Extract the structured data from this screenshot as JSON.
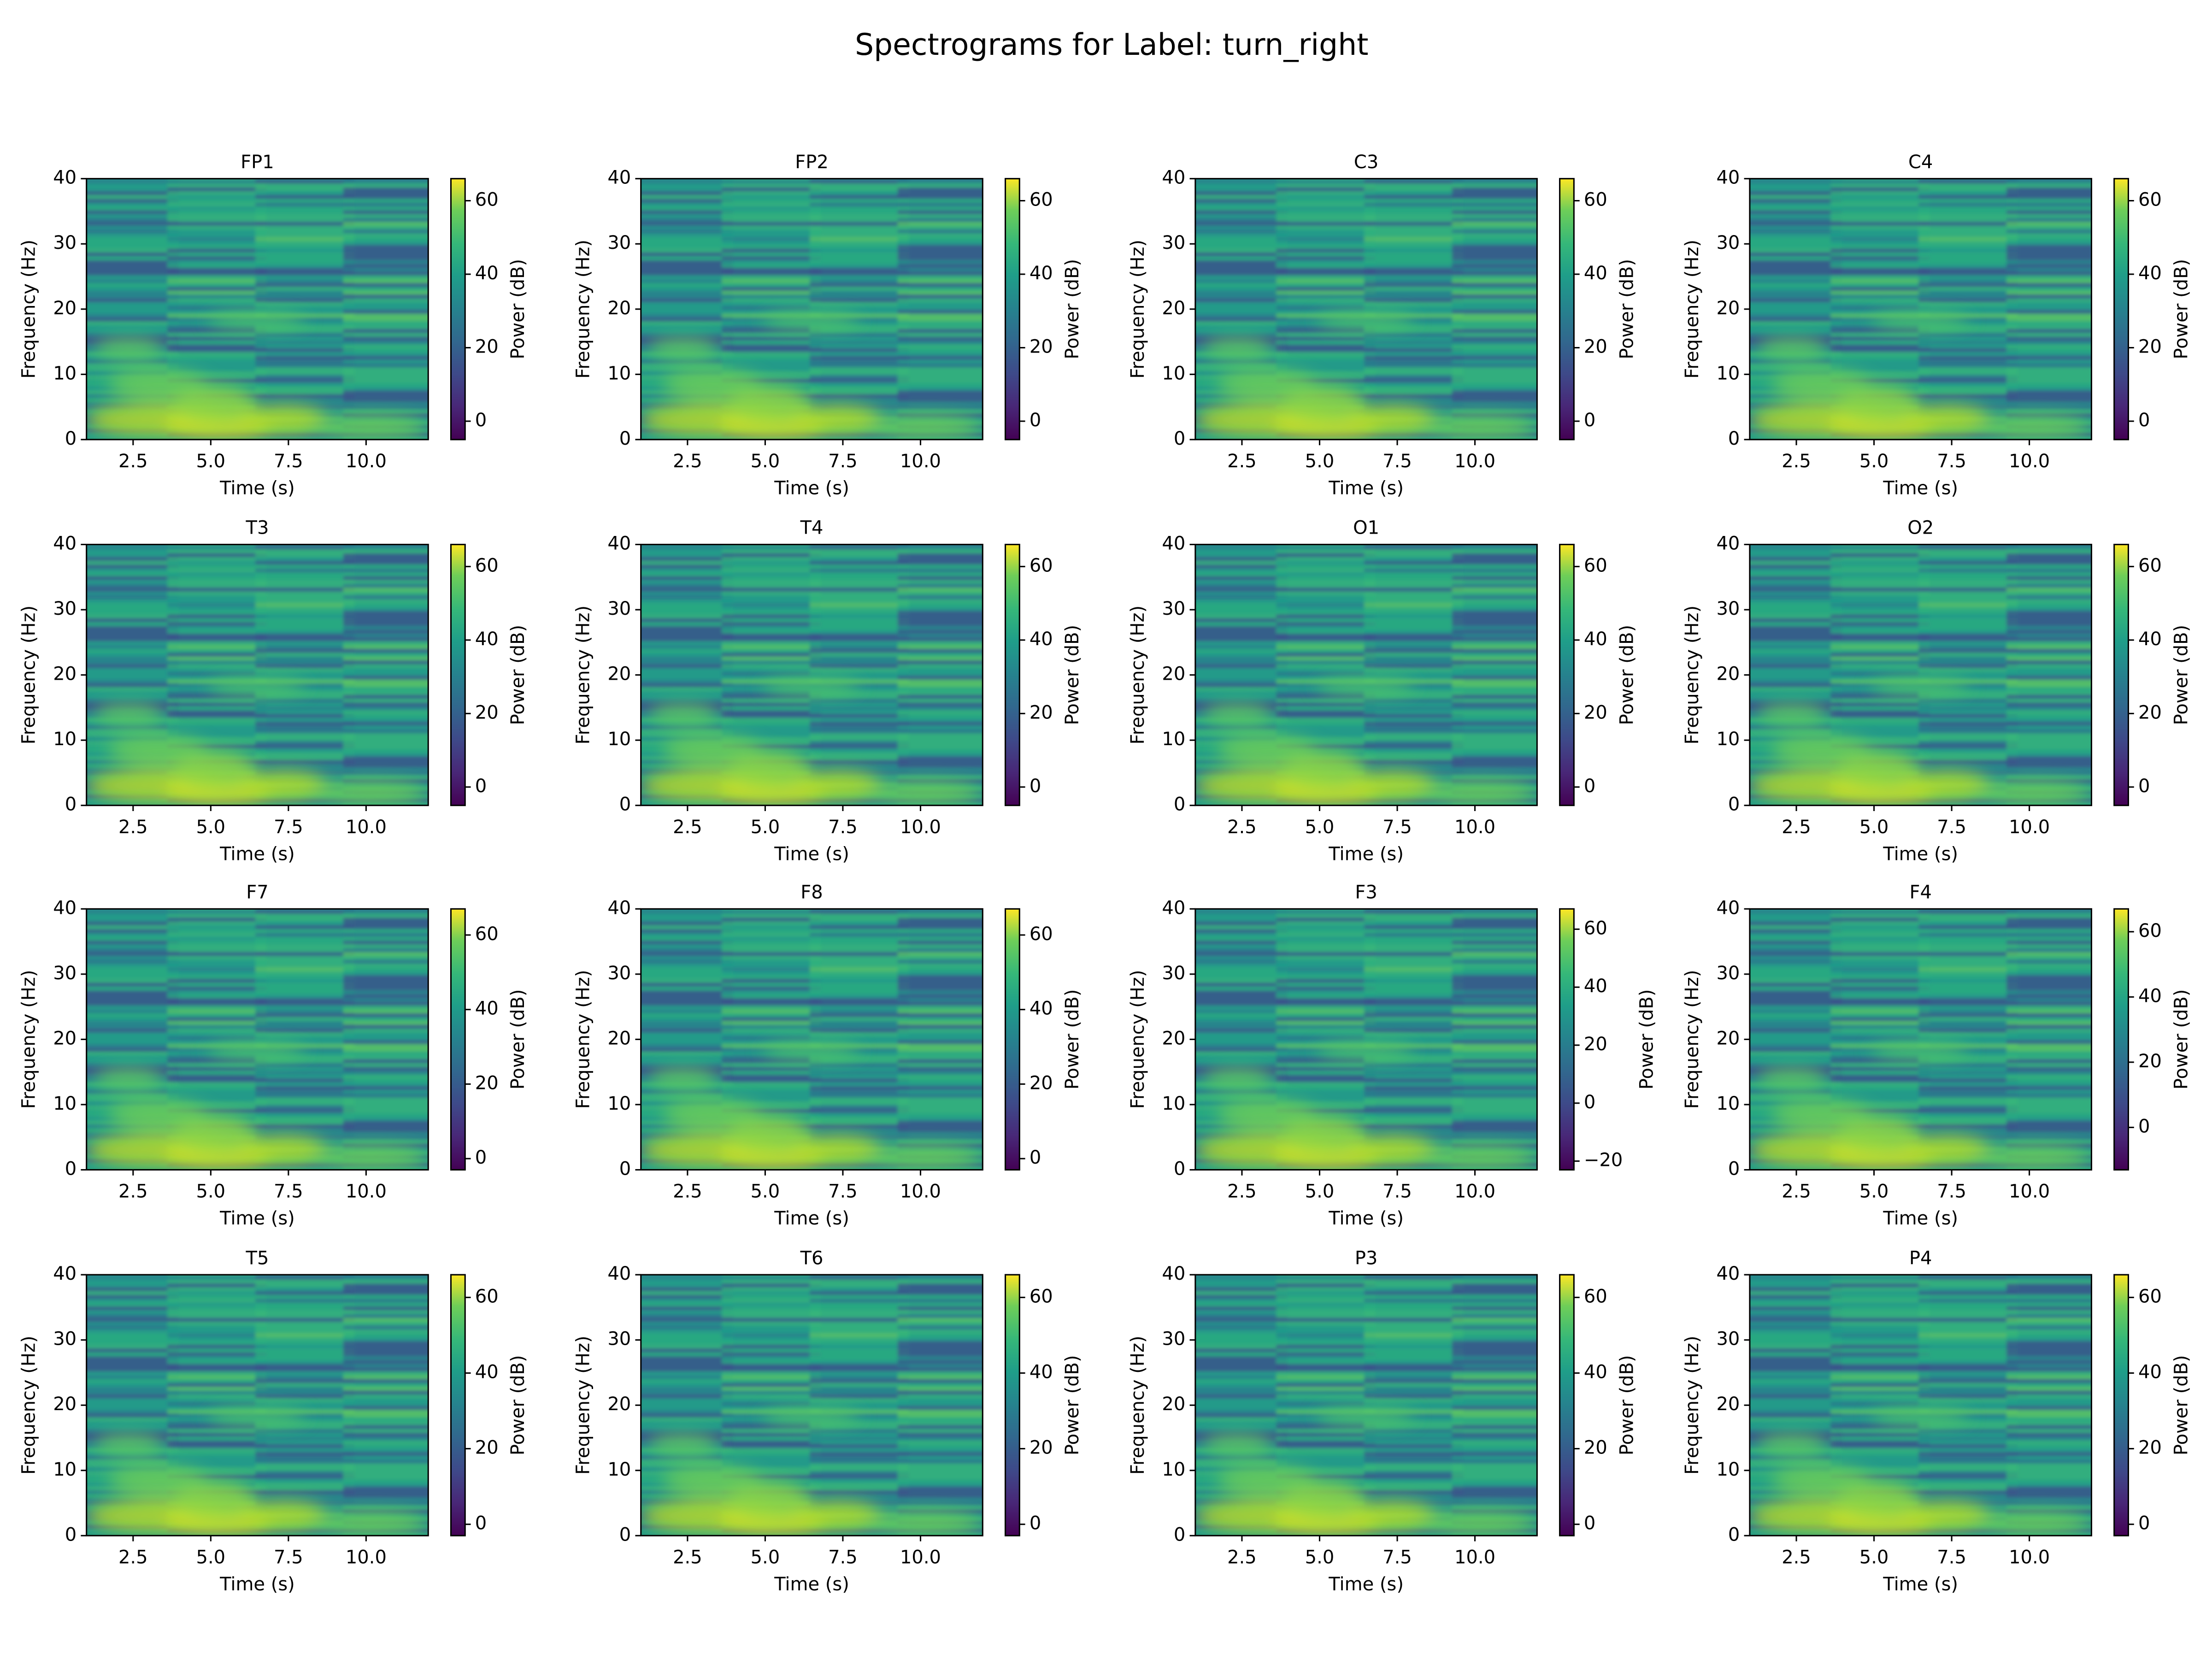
{
  "title": "Spectrograms for Label: turn_right",
  "chart_data": [
    {
      "type": "heatmap",
      "title": "FP1",
      "x_label": "Time (s)",
      "y_label": "Frequency (Hz)",
      "xlim": [
        1,
        12
      ],
      "xticks": [
        2.5,
        {
          "value": 5,
          "label": "5.0"
        },
        7.5,
        {
          "value": 10,
          "label": "10.0"
        }
      ],
      "ylim": [
        0,
        40
      ],
      "yticks": [
        0,
        10,
        20,
        30,
        40
      ],
      "colorbar": {
        "label": "Power (dB)",
        "colormap": "viridis",
        "lim": [
          -5,
          66
        ],
        "ticks": [
          0,
          20,
          40,
          60
        ]
      }
    },
    {
      "type": "heatmap",
      "title": "FP2",
      "x_label": "Time (s)",
      "y_label": "Frequency (Hz)",
      "xlim": [
        1,
        12
      ],
      "xticks": [
        2.5,
        {
          "value": 5,
          "label": "5.0"
        },
        7.5,
        {
          "value": 10,
          "label": "10.0"
        }
      ],
      "ylim": [
        0,
        40
      ],
      "yticks": [
        0,
        10,
        20,
        30,
        40
      ],
      "colorbar": {
        "label": "Power (dB)",
        "colormap": "viridis",
        "lim": [
          -5,
          66
        ],
        "ticks": [
          0,
          20,
          40,
          60
        ]
      }
    },
    {
      "type": "heatmap",
      "title": "C3",
      "x_label": "Time (s)",
      "y_label": "Frequency (Hz)",
      "xlim": [
        1,
        12
      ],
      "xticks": [
        2.5,
        {
          "value": 5,
          "label": "5.0"
        },
        7.5,
        {
          "value": 10,
          "label": "10.0"
        }
      ],
      "ylim": [
        0,
        40
      ],
      "yticks": [
        0,
        10,
        20,
        30,
        40
      ],
      "colorbar": {
        "label": "Power (dB)",
        "colormap": "viridis",
        "lim": [
          -5,
          66
        ],
        "ticks": [
          0,
          20,
          40,
          60
        ]
      }
    },
    {
      "type": "heatmap",
      "title": "C4",
      "x_label": "Time (s)",
      "y_label": "Frequency (Hz)",
      "xlim": [
        1,
        12
      ],
      "xticks": [
        2.5,
        {
          "value": 5,
          "label": "5.0"
        },
        7.5,
        {
          "value": 10,
          "label": "10.0"
        }
      ],
      "ylim": [
        0,
        40
      ],
      "yticks": [
        0,
        10,
        20,
        30,
        40
      ],
      "colorbar": {
        "label": "Power (dB)",
        "colormap": "viridis",
        "lim": [
          -5,
          66
        ],
        "ticks": [
          0,
          20,
          40,
          60
        ]
      }
    },
    {
      "type": "heatmap",
      "title": "T3",
      "x_label": "Time (s)",
      "y_label": "Frequency (Hz)",
      "xlim": [
        1,
        12
      ],
      "xticks": [
        2.5,
        {
          "value": 5,
          "label": "5.0"
        },
        7.5,
        {
          "value": 10,
          "label": "10.0"
        }
      ],
      "ylim": [
        0,
        40
      ],
      "yticks": [
        0,
        10,
        20,
        30,
        40
      ],
      "colorbar": {
        "label": "Power (dB)",
        "colormap": "viridis",
        "lim": [
          -5,
          66
        ],
        "ticks": [
          0,
          20,
          40,
          60
        ]
      }
    },
    {
      "type": "heatmap",
      "title": "T4",
      "x_label": "Time (s)",
      "y_label": "Frequency (Hz)",
      "xlim": [
        1,
        12
      ],
      "xticks": [
        2.5,
        {
          "value": 5,
          "label": "5.0"
        },
        7.5,
        {
          "value": 10,
          "label": "10.0"
        }
      ],
      "ylim": [
        0,
        40
      ],
      "yticks": [
        0,
        10,
        20,
        30,
        40
      ],
      "colorbar": {
        "label": "Power (dB)",
        "colormap": "viridis",
        "lim": [
          -5,
          66
        ],
        "ticks": [
          0,
          20,
          40,
          60
        ]
      }
    },
    {
      "type": "heatmap",
      "title": "O1",
      "x_label": "Time (s)",
      "y_label": "Frequency (Hz)",
      "xlim": [
        1,
        12
      ],
      "xticks": [
        2.5,
        {
          "value": 5,
          "label": "5.0"
        },
        7.5,
        {
          "value": 10,
          "label": "10.0"
        }
      ],
      "ylim": [
        0,
        40
      ],
      "yticks": [
        0,
        10,
        20,
        30,
        40
      ],
      "colorbar": {
        "label": "Power (dB)",
        "colormap": "viridis",
        "lim": [
          -5,
          66
        ],
        "ticks": [
          0,
          20,
          40,
          60
        ]
      }
    },
    {
      "type": "heatmap",
      "title": "O2",
      "x_label": "Time (s)",
      "y_label": "Frequency (Hz)",
      "xlim": [
        1,
        12
      ],
      "xticks": [
        2.5,
        {
          "value": 5,
          "label": "5.0"
        },
        7.5,
        {
          "value": 10,
          "label": "10.0"
        }
      ],
      "ylim": [
        0,
        40
      ],
      "yticks": [
        0,
        10,
        20,
        30,
        40
      ],
      "colorbar": {
        "label": "Power (dB)",
        "colormap": "viridis",
        "lim": [
          -5,
          66
        ],
        "ticks": [
          0,
          20,
          40,
          60
        ]
      }
    },
    {
      "type": "heatmap",
      "title": "F7",
      "x_label": "Time (s)",
      "y_label": "Frequency (Hz)",
      "xlim": [
        1,
        12
      ],
      "xticks": [
        2.5,
        {
          "value": 5,
          "label": "5.0"
        },
        7.5,
        {
          "value": 10,
          "label": "10.0"
        }
      ],
      "ylim": [
        0,
        40
      ],
      "yticks": [
        0,
        10,
        20,
        30,
        40
      ],
      "colorbar": {
        "label": "Power (dB)",
        "colormap": "viridis",
        "lim": [
          -3,
          67
        ],
        "ticks": [
          0,
          20,
          40,
          60
        ]
      }
    },
    {
      "type": "heatmap",
      "title": "F8",
      "x_label": "Time (s)",
      "y_label": "Frequency (Hz)",
      "xlim": [
        1,
        12
      ],
      "xticks": [
        2.5,
        {
          "value": 5,
          "label": "5.0"
        },
        7.5,
        {
          "value": 10,
          "label": "10.0"
        }
      ],
      "ylim": [
        0,
        40
      ],
      "yticks": [
        0,
        10,
        20,
        30,
        40
      ],
      "colorbar": {
        "label": "Power (dB)",
        "colormap": "viridis",
        "lim": [
          -3,
          67
        ],
        "ticks": [
          0,
          20,
          40,
          60
        ]
      }
    },
    {
      "type": "heatmap",
      "title": "F3",
      "x_label": "Time (s)",
      "y_label": "Frequency (Hz)",
      "xlim": [
        1,
        12
      ],
      "xticks": [
        2.5,
        {
          "value": 5,
          "label": "5.0"
        },
        7.5,
        {
          "value": 10,
          "label": "10.0"
        }
      ],
      "ylim": [
        0,
        40
      ],
      "yticks": [
        0,
        10,
        20,
        30,
        40
      ],
      "colorbar": {
        "label": "Power (dB)",
        "colormap": "viridis",
        "lim": [
          -23,
          67
        ],
        "ticks": [
          {
            "value": -20,
            "label": "−20"
          },
          0,
          20,
          40,
          60
        ]
      }
    },
    {
      "type": "heatmap",
      "title": "F4",
      "x_label": "Time (s)",
      "y_label": "Frequency (Hz)",
      "xlim": [
        1,
        12
      ],
      "xticks": [
        2.5,
        {
          "value": 5,
          "label": "5.0"
        },
        7.5,
        {
          "value": 10,
          "label": "10.0"
        }
      ],
      "ylim": [
        0,
        40
      ],
      "yticks": [
        0,
        10,
        20,
        30,
        40
      ],
      "colorbar": {
        "label": "Power (dB)",
        "colormap": "viridis",
        "lim": [
          -13,
          67
        ],
        "ticks": [
          0,
          20,
          40,
          60
        ]
      }
    },
    {
      "type": "heatmap",
      "title": "T5",
      "x_label": "Time (s)",
      "y_label": "Frequency (Hz)",
      "xlim": [
        1,
        12
      ],
      "xticks": [
        2.5,
        {
          "value": 5,
          "label": "5.0"
        },
        7.5,
        {
          "value": 10,
          "label": "10.0"
        }
      ],
      "ylim": [
        0,
        40
      ],
      "yticks": [
        0,
        10,
        20,
        30,
        40
      ],
      "colorbar": {
        "label": "Power (dB)",
        "colormap": "viridis",
        "lim": [
          -3,
          66
        ],
        "ticks": [
          0,
          20,
          40,
          60
        ]
      }
    },
    {
      "type": "heatmap",
      "title": "T6",
      "x_label": "Time (s)",
      "y_label": "Frequency (Hz)",
      "xlim": [
        1,
        12
      ],
      "xticks": [
        2.5,
        {
          "value": 5,
          "label": "5.0"
        },
        7.5,
        {
          "value": 10,
          "label": "10.0"
        }
      ],
      "ylim": [
        0,
        40
      ],
      "yticks": [
        0,
        10,
        20,
        30,
        40
      ],
      "colorbar": {
        "label": "Power (dB)",
        "colormap": "viridis",
        "lim": [
          -3,
          66
        ],
        "ticks": [
          0,
          20,
          40,
          60
        ]
      }
    },
    {
      "type": "heatmap",
      "title": "P3",
      "x_label": "Time (s)",
      "y_label": "Frequency (Hz)",
      "xlim": [
        1,
        12
      ],
      "xticks": [
        2.5,
        {
          "value": 5,
          "label": "5.0"
        },
        7.5,
        {
          "value": 10,
          "label": "10.0"
        }
      ],
      "ylim": [
        0,
        40
      ],
      "yticks": [
        0,
        10,
        20,
        30,
        40
      ],
      "colorbar": {
        "label": "Power (dB)",
        "colormap": "viridis",
        "lim": [
          -3,
          66
        ],
        "ticks": [
          0,
          20,
          40,
          60
        ]
      }
    },
    {
      "type": "heatmap",
      "title": "P4",
      "x_label": "Time (s)",
      "y_label": "Frequency (Hz)",
      "xlim": [
        1,
        12
      ],
      "xticks": [
        2.5,
        {
          "value": 5,
          "label": "5.0"
        },
        7.5,
        {
          "value": 10,
          "label": "10.0"
        }
      ],
      "ylim": [
        0,
        40
      ],
      "yticks": [
        0,
        10,
        20,
        30,
        40
      ],
      "colorbar": {
        "label": "Power (dB)",
        "colormap": "viridis",
        "lim": [
          -3,
          66
        ],
        "ticks": [
          0,
          20,
          40,
          60
        ]
      }
    }
  ]
}
